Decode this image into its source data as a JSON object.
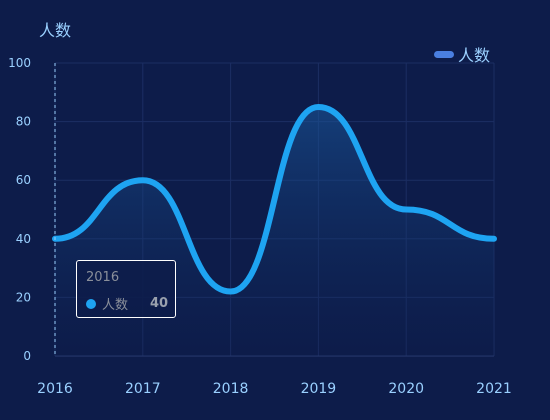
{
  "chart_data": {
    "type": "area",
    "ylabel": "人数",
    "legend": {
      "position": "top-right",
      "label": "人数"
    },
    "x": [
      "2016",
      "2017",
      "2018",
      "2019",
      "2020",
      "2021"
    ],
    "series": [
      {
        "name": "人数",
        "values": [
          40,
          60,
          22,
          85,
          50,
          40
        ]
      }
    ],
    "ylim": [
      0,
      100
    ],
    "yticks": [
      "0",
      "20",
      "40",
      "60",
      "80",
      "100"
    ],
    "grid": true,
    "smooth": true,
    "colors": {
      "line": "#1ea4f2",
      "legend": "#4a7fe0",
      "axis_text": "#9ad0ff",
      "grid": "#1c2e63"
    }
  },
  "tooltip": {
    "title": "2016",
    "series_name": "人数",
    "value": "40"
  }
}
